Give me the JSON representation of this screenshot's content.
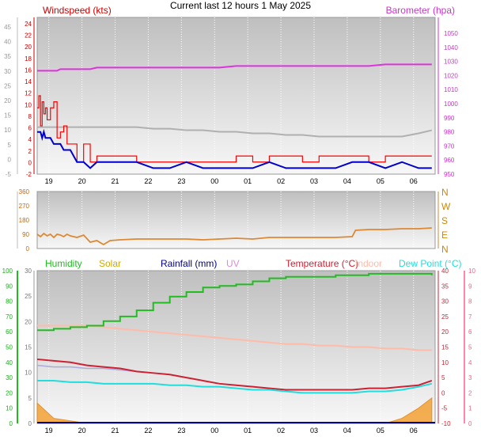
{
  "title": "Current last 12 hours 1 May 2025",
  "x_ticks": [
    "19",
    "20",
    "21",
    "22",
    "23",
    "00",
    "01",
    "02",
    "03",
    "04",
    "05",
    "06"
  ],
  "colors": {
    "wind": "#cc0000",
    "gust": "#ff0000",
    "avgwind": "#0000cc",
    "baro": "#dd33dd",
    "cyan": "#22cccc",
    "silver": "#b0b0b0",
    "dir": "#dd8833",
    "humidity": "#22bb22",
    "solar": "#ccaa00",
    "rain": "#000088",
    "uv": "#dd88dd",
    "temp": "#cc2233",
    "indoor": "#ffbbaa",
    "dew": "#22dddd",
    "solarfill": "#f4a640"
  },
  "chart_data": [
    {
      "type": "line",
      "title": "",
      "left_label": "Windspeed (kts)",
      "right_label": "Barometer (hpa)",
      "left_gray_ticks": [
        "45",
        "40",
        "35",
        "30",
        "25",
        "20",
        "15",
        "10",
        "5",
        "0",
        "-5"
      ],
      "left_red_ticks": [
        "24",
        "22",
        "20",
        "18",
        "16",
        "14",
        "12",
        "10",
        "8",
        "6",
        "4",
        "2",
        "0",
        "-2"
      ],
      "right_ticks": [
        "1050",
        "1040",
        "1030",
        "1020",
        "1010",
        "1000",
        "990",
        "980",
        "970",
        "960",
        "950"
      ],
      "x": [
        0,
        0.05,
        0.1,
        0.15,
        0.2,
        0.25,
        0.3,
        0.4,
        0.5,
        0.6,
        0.7,
        0.8,
        0.9,
        1.0,
        1.2,
        1.4,
        1.6,
        1.8,
        2.0,
        2.5,
        3,
        3.5,
        4,
        4.5,
        5,
        5.5,
        6,
        6.5,
        7,
        7.5,
        8,
        8.5,
        9,
        9.5,
        10,
        10.5,
        11,
        11.5,
        11.9
      ],
      "series": [
        {
          "name": "gust",
          "ylim": [
            -2,
            24
          ],
          "values": [
            9,
            11,
            6,
            10,
            8,
            9,
            7,
            9,
            10,
            4,
            5,
            6,
            3,
            3,
            0,
            3,
            0,
            1,
            1,
            1,
            0,
            0,
            0,
            0,
            0,
            0,
            1,
            0,
            1,
            1,
            0,
            1,
            1,
            1,
            0,
            1,
            1,
            1,
            1
          ]
        },
        {
          "name": "wind",
          "ylim": [
            -2,
            24
          ],
          "values": [
            5,
            5,
            4,
            6,
            5,
            5,
            4,
            6,
            5,
            3,
            3,
            4,
            2,
            2,
            0,
            2,
            0,
            1,
            0,
            1,
            0,
            0,
            0,
            0,
            0,
            0,
            0,
            0,
            1,
            0,
            0,
            0,
            0,
            1,
            0,
            0,
            1,
            0,
            0
          ]
        },
        {
          "name": "average",
          "ylim": [
            -2,
            24
          ],
          "values": [
            5,
            5,
            5,
            4,
            5,
            4,
            4,
            4,
            3,
            3,
            3,
            2,
            2,
            2,
            0,
            0,
            -1,
            0,
            0,
            0,
            0,
            -1,
            -1,
            0,
            -1,
            -1,
            -1,
            -1,
            0,
            -1,
            -1,
            -1,
            -1,
            0,
            0,
            -1,
            0,
            -1,
            -1
          ]
        },
        {
          "name": "barometer",
          "ylim": [
            950,
            1050
          ],
          "values": [
            1016,
            1016,
            1016,
            1016,
            1016,
            1016,
            1016,
            1016,
            1016,
            1016,
            1017,
            1017,
            1017,
            1017,
            1017,
            1017,
            1017,
            1018,
            1018,
            1018,
            1018,
            1018,
            1018,
            1018,
            1018,
            1018,
            1019,
            1019,
            1019,
            1019,
            1019,
            1019,
            1019,
            1019,
            1019,
            1020,
            1020,
            1020,
            1020
          ]
        },
        {
          "name": "gray",
          "ylim": [
            -5,
            45
          ],
          "values": [
            10,
            10,
            10,
            10,
            10,
            10,
            10,
            10,
            10,
            10,
            10,
            10,
            10,
            10,
            10,
            10,
            10,
            10,
            10,
            10,
            10,
            9.5,
            9.5,
            9,
            9,
            8.5,
            8.5,
            8,
            8,
            7.5,
            7.5,
            7,
            7,
            7,
            7,
            7,
            7,
            8,
            9
          ]
        }
      ]
    },
    {
      "type": "line",
      "title": "",
      "left_ticks": [
        "360",
        "270",
        "180",
        "90",
        "0"
      ],
      "right_ticks": [
        "N",
        "W",
        "S",
        "E",
        "N"
      ],
      "ylim": [
        0,
        360
      ],
      "x": [
        0,
        0.1,
        0.2,
        0.3,
        0.4,
        0.5,
        0.6,
        0.7,
        0.8,
        0.9,
        1.0,
        1.1,
        1.2,
        1.4,
        1.6,
        1.8,
        2.0,
        2.2,
        2.5,
        3,
        3.5,
        4,
        4.5,
        5,
        5.5,
        6,
        6.5,
        7,
        7.5,
        8,
        8.5,
        9,
        9.5,
        9.6,
        10,
        10.5,
        11,
        11.5,
        11.9
      ],
      "series": [
        {
          "name": "direction",
          "values": [
            90,
            75,
            95,
            80,
            90,
            70,
            90,
            85,
            75,
            90,
            80,
            75,
            70,
            85,
            40,
            50,
            25,
            50,
            55,
            60,
            60,
            60,
            60,
            55,
            60,
            65,
            60,
            70,
            70,
            70,
            70,
            70,
            75,
            115,
            120,
            120,
            125,
            125,
            130
          ]
        }
      ]
    },
    {
      "type": "line",
      "title": "",
      "legend": [
        {
          "label": "Humidity",
          "color": "humidity"
        },
        {
          "label": "Solar",
          "color": "solar"
        },
        {
          "label": "Rainfall (mm)",
          "color": "rain"
        },
        {
          "label": "UV",
          "color": "uv"
        },
        {
          "label": "Temperature (°C)",
          "color": "temp"
        },
        {
          "label": "Indoor",
          "color": "indoor"
        },
        {
          "label": "Dew Point (°C)",
          "color": "dew"
        }
      ],
      "left_green_ticks": [
        "100",
        "90",
        "80",
        "70",
        "60",
        "50",
        "40",
        "30",
        "20",
        "10",
        "0"
      ],
      "left_gray_ticks": [
        "30",
        "25",
        "20",
        "15",
        "10",
        "5",
        "0"
      ],
      "right_red_ticks": [
        "40",
        "35",
        "30",
        "25",
        "20",
        "15",
        "10",
        "5",
        "0",
        "-5",
        "-10"
      ],
      "right_pink_ticks": [
        "10",
        "9",
        "8",
        "7",
        "6",
        "5",
        "4",
        "3",
        "2",
        "1",
        "0"
      ],
      "x": [
        0,
        0.5,
        1,
        1.5,
        2,
        2.5,
        3,
        3.5,
        4,
        4.5,
        5,
        5.5,
        6,
        6.5,
        7,
        7.5,
        8,
        8.5,
        9,
        9.5,
        10,
        10.5,
        11,
        11.5,
        11.9
      ],
      "series": [
        {
          "name": "humidity",
          "ylim": [
            0,
            100
          ],
          "values": [
            61,
            62,
            63,
            64,
            67,
            70,
            74,
            79,
            83,
            86,
            89,
            90,
            91,
            93,
            95,
            96,
            96,
            96,
            97,
            97,
            98,
            98,
            98,
            98,
            97
          ]
        },
        {
          "name": "indoor",
          "ylim": [
            -10,
            40
          ],
          "values": [
            22,
            22,
            22,
            22,
            21.5,
            21,
            20.5,
            20,
            19.5,
            19,
            18.5,
            18,
            17.5,
            17,
            16.5,
            16,
            16,
            15.5,
            15.5,
            15,
            15,
            14.5,
            14.5,
            14,
            14
          ]
        },
        {
          "name": "temperature",
          "ylim": [
            -10,
            40
          ],
          "values": [
            11,
            10.5,
            10,
            9,
            8.5,
            8,
            7,
            6.5,
            6,
            5,
            4,
            3,
            2.5,
            2,
            1.5,
            1,
            1,
            1,
            1,
            1,
            1.5,
            1.5,
            2,
            2.5,
            4
          ]
        },
        {
          "name": "uv",
          "ylim": [
            -10,
            40
          ],
          "values": [
            9,
            8.5,
            8.5,
            8,
            8,
            7.5,
            7,
            6.5,
            6,
            5,
            4,
            3,
            2.5,
            2,
            1.5,
            1,
            1,
            1,
            1,
            1,
            1.5,
            1.5,
            2,
            2.5,
            4
          ]
        },
        {
          "name": "dewpoint",
          "ylim": [
            -10,
            40
          ],
          "values": [
            4,
            4,
            3.5,
            3.5,
            3,
            3,
            3,
            3,
            2.5,
            2.5,
            2,
            2,
            1.5,
            1,
            1,
            0.5,
            0,
            0,
            0,
            0,
            0.5,
            0.5,
            1,
            2,
            3
          ]
        },
        {
          "name": "solar",
          "ylim": [
            0,
            30
          ],
          "values": [
            4,
            1,
            0.5,
            0,
            0,
            0,
            0,
            0,
            0,
            0,
            0,
            0,
            0,
            0,
            0,
            0,
            0,
            0,
            0,
            0,
            0,
            0,
            1,
            3,
            5
          ]
        }
      ]
    }
  ]
}
